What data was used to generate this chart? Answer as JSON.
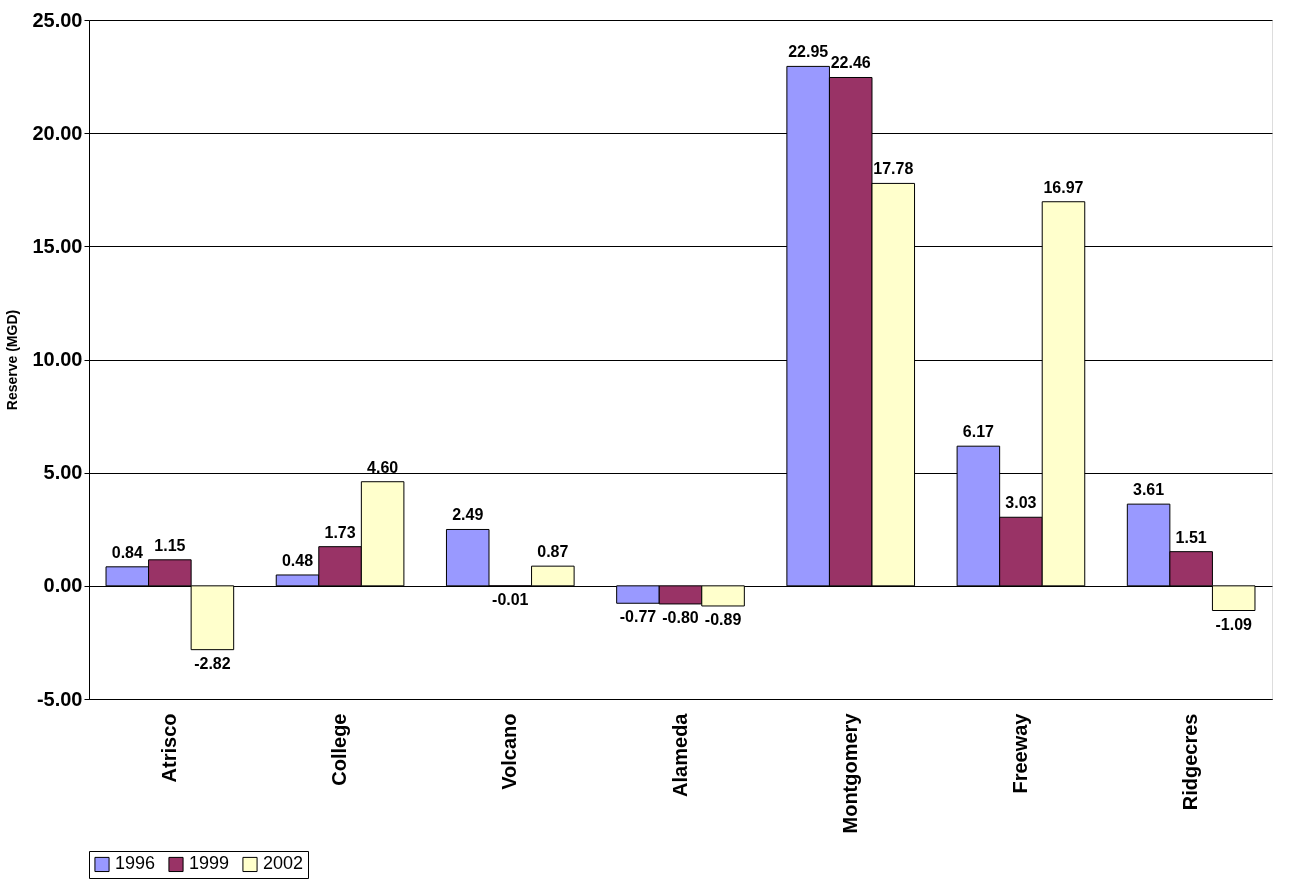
{
  "chart_data": {
    "type": "bar",
    "ylabel": "Reserve (MGD)",
    "categories": [
      "Atrisco",
      "College",
      "Volcano",
      "Alameda",
      "Montgomery",
      "Freeway",
      "Ridgecres"
    ],
    "series": [
      {
        "name": "1996",
        "color": "#9999ff",
        "values": [
          0.84,
          0.48,
          2.49,
          -0.77,
          22.95,
          6.17,
          3.61
        ],
        "value_labels": [
          "0.84",
          "0.48",
          "2.49",
          "-0.77",
          "22.95",
          "6.17",
          "3.61"
        ]
      },
      {
        "name": "1999",
        "color": "#993366",
        "values": [
          1.15,
          1.73,
          -0.01,
          -0.8,
          22.46,
          3.03,
          1.51
        ],
        "value_labels": [
          "1.15",
          "1.73",
          "-0.01",
          "-0.80",
          "22.46",
          "3.03",
          "1.51"
        ]
      },
      {
        "name": "2002",
        "color": "#ffffcc",
        "values": [
          -2.82,
          4.6,
          0.87,
          -0.89,
          17.78,
          16.97,
          -1.09
        ],
        "value_labels": [
          "-2.82",
          "4.60",
          "0.87",
          "-0.89",
          "17.78",
          "16.97",
          "-1.09"
        ]
      }
    ],
    "ylim": [
      -5,
      25
    ],
    "yticks": [
      {
        "value": -5,
        "label": "-5.00"
      },
      {
        "value": 0,
        "label": "0.00"
      },
      {
        "value": 5,
        "label": "5.00"
      },
      {
        "value": 10,
        "label": "10.00"
      },
      {
        "value": 15,
        "label": "15.00"
      },
      {
        "value": 20,
        "label": "20.00"
      },
      {
        "value": 25,
        "label": "25.00"
      }
    ],
    "grid": "y",
    "legend": "bottom"
  }
}
